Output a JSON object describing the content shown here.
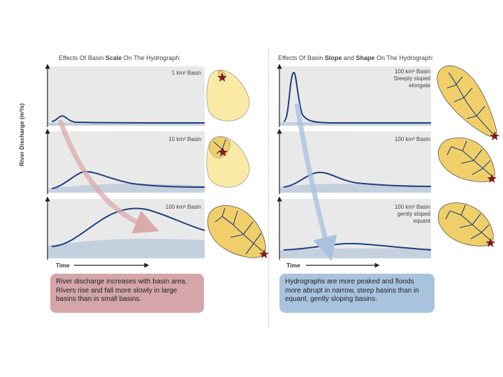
{
  "left": {
    "title_pre": "Effects Of Basin ",
    "title_bold": "Scale",
    "title_post": " On The Hydrograph:",
    "panels": [
      {
        "label": "1 km² Basin"
      },
      {
        "label": "10 km² Basin"
      },
      {
        "label": "100 km² Basin"
      }
    ],
    "time_label": "Time",
    "caption": "River discharge increases with basin area. Rivers rise and fall more slowly in large basins than in small basins."
  },
  "right": {
    "title_pre": "Effects Of Basin ",
    "title_bold1": "Slope",
    "title_mid": " and ",
    "title_bold2": "Shape",
    "title_post": " On The Hydrograph:",
    "panels": [
      {
        "label_l1": "100 km² Basin",
        "label_l2": "Steeply sloped",
        "label_l3": "elongate"
      },
      {
        "label_l1": "100 km² Basin",
        "label_l2": "",
        "label_l3": ""
      },
      {
        "label_l1": "100 km² Basin",
        "label_l2": "gently sloped",
        "label_l3": "equant"
      }
    ],
    "time_label": "Time",
    "caption": "Hydrographs are more peaked and floods more abrupt in narrow, steep basins than in equant, gently sloping basins."
  },
  "y_axis_label": "River Discharge (m³/s)",
  "colors": {
    "panel_bg": "#e9e9e9",
    "curve": "#1f3f7a",
    "baseflow": "#c5d0df",
    "basin_fill": "#fbeaa5",
    "basin_fill_dark": "#f0cf6a",
    "river": "#1f3f7a",
    "outlet_star": "#7a1c1c",
    "left_arrow": "#d9a9ab",
    "right_arrow": "#a9c3df",
    "left_caption": "#d4a6a9",
    "right_caption": "#a9c3df"
  },
  "icons": [
    "basin-outline-icon",
    "river-network-icon",
    "outlet-star-icon",
    "time-arrow-icon",
    "trend-arrow-icon"
  ]
}
